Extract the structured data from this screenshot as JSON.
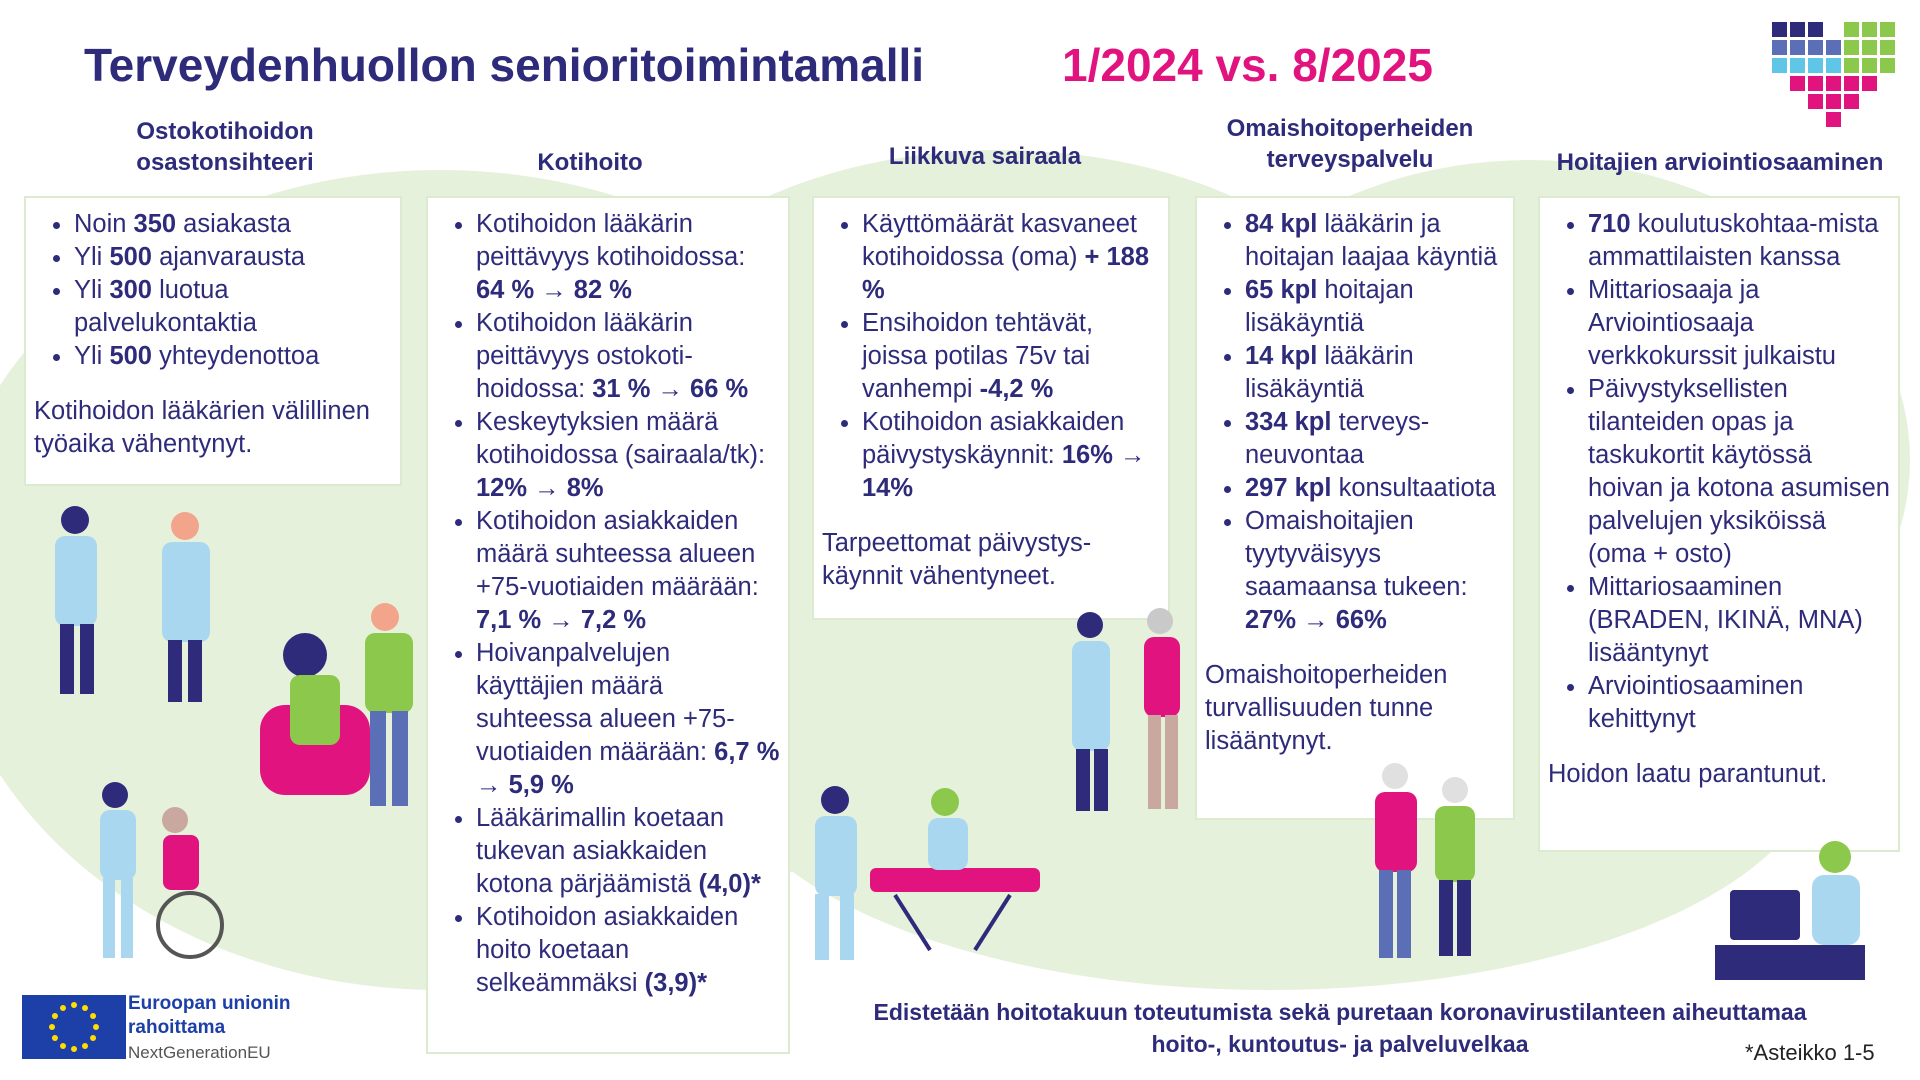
{
  "header": {
    "title": "Terveydenhuollon senioritoimintamalli",
    "period": "1/2024 vs. 8/2025"
  },
  "columns": [
    {
      "heading": [
        "Ostokotihoidon",
        "osastonsihteeri"
      ],
      "bullets": [
        [
          "Noin ",
          "350",
          " asiakasta"
        ],
        [
          "Yli ",
          "500",
          " ajanvarausta"
        ],
        [
          "Yli ",
          "300",
          " luotua palvelukontaktia"
        ],
        [
          "Yli ",
          "500",
          " yhteydenottoa"
        ]
      ],
      "note": "Kotihoidon lääkärien välillinen työaika vähentynyt."
    },
    {
      "heading": [
        "Kotihoito"
      ],
      "bullets": [
        [
          "Kotihoidon lääkärin peittävyys kotihoidossa: ",
          "64 % → 82 %",
          ""
        ],
        [
          "Kotihoidon lääkärin peittävyys ostokoti-hoidossa: ",
          "31 % → 66 %",
          ""
        ],
        [
          "Keskeytyksien määrä kotihoidossa (sairaala/tk): ",
          "12% →  8%",
          ""
        ],
        [
          "Kotihoidon asiakkaiden määrä suhteessa alueen +75-vuotiaiden määrään: ",
          "7,1 % → 7,2 %",
          ""
        ],
        [
          "Hoivanpalvelujen käyttäjien määrä suhteessa alueen +75-vuotiaiden määrään: ",
          "6,7 % → 5,9 %",
          ""
        ],
        [
          "Lääkärimallin koetaan tukevan asiakkaiden kotona pärjäämistä ",
          "(4,0)*",
          ""
        ],
        [
          "Kotihoidon asiakkaiden hoito koetaan selkeämmäksi ",
          "(3,9)*",
          ""
        ]
      ],
      "note": ""
    },
    {
      "heading": [
        "Liikkuva sairaala"
      ],
      "bullets": [
        [
          "Käyttömäärät kasvaneet kotihoidossa (oma) ",
          "+ 188 %",
          ""
        ],
        [
          "Ensihoidon tehtävät, joissa potilas 75v tai vanhempi ",
          "-4,2 %",
          ""
        ],
        [
          "Kotihoidon asiakkaiden päivystyskäynnit: ",
          "16% → 14%",
          ""
        ]
      ],
      "note": "Tarpeettomat päivystys-käynnit vähentyneet."
    },
    {
      "heading": [
        "Omaishoitoperheiden",
        "terveyspalvelu"
      ],
      "bullets": [
        [
          "",
          "84 kpl",
          " lääkärin ja hoitajan laajaa käyntiä"
        ],
        [
          "",
          "65 kpl",
          " hoitajan lisäkäyntiä"
        ],
        [
          "",
          "14 kpl",
          " lääkärin lisäkäyntiä"
        ],
        [
          "",
          "334 kpl",
          " terveys-neuvontaa"
        ],
        [
          "",
          "297 kpl",
          " konsultaatiota"
        ],
        [
          "Omaishoitajien tyytyväisyys saamaansa tukeen: ",
          "27% → 66%",
          ""
        ]
      ],
      "note": "Omaishoitoperheiden turvallisuuden tunne lisääntynyt."
    },
    {
      "heading": [
        "Hoitajien arviointiosaaminen"
      ],
      "bullets": [
        [
          "",
          "710",
          " koulutuskohtaa-mista ammattilaisten kanssa"
        ],
        [
          "Mittariosaaja ja Arviointiosaaja verkkokurssit julkaistu",
          "",
          ""
        ],
        [
          "Päivystyksellisten tilanteiden opas ja taskukortit käytössä hoivan ja kotona asumisen palvelujen yksiköissä (oma + osto)",
          "",
          ""
        ],
        [
          "Mittariosaaminen (BRADEN, IKINÄ, MNA) lisääntynyt",
          "",
          ""
        ],
        [
          "Arviointiosaaminen kehittynyt",
          "",
          ""
        ]
      ],
      "note": "Hoidon laatu parantunut."
    }
  ],
  "footer": {
    "eu_line1": "Euroopan unionin",
    "eu_line2": "rahoittama",
    "eu_sub": "NextGenerationEU",
    "goal_line1": "Edistetään hoitotakuun toteutumista sekä puretaan koronavirustilanteen aiheuttamaa",
    "goal_line2": "hoito-, kuntoutus- ja palveluvelkaa",
    "footnote": "*Asteikko 1-5"
  },
  "colors": {
    "navy": "#2d2b7a",
    "magenta": "#e1147f",
    "green_bg": "#e6f1dc",
    "eu_blue": "#1d3fa8"
  }
}
